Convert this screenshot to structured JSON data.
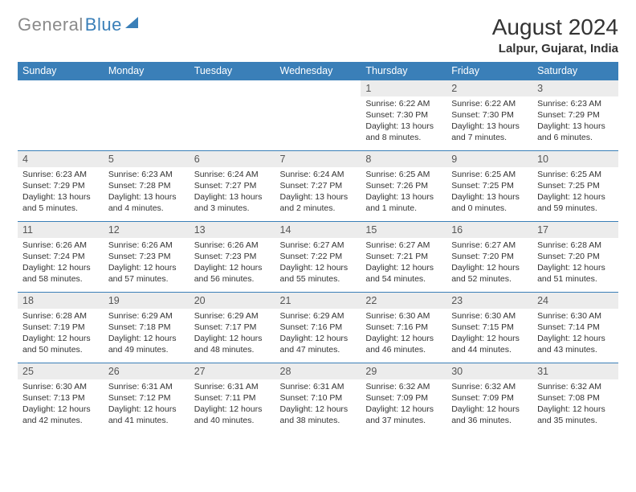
{
  "brand": {
    "part1": "General",
    "part2": "Blue"
  },
  "title": "August 2024",
  "location": "Lalpur, Gujarat, India",
  "colors": {
    "header_bg": "#3a7fb8",
    "header_text": "#ffffff",
    "daynum_bg": "#ececec",
    "border": "#3a7fb8",
    "text": "#333333",
    "logo_gray": "#8a8a8a",
    "logo_blue": "#3a7fb8"
  },
  "weekdays": [
    "Sunday",
    "Monday",
    "Tuesday",
    "Wednesday",
    "Thursday",
    "Friday",
    "Saturday"
  ],
  "weeks": [
    [
      null,
      null,
      null,
      null,
      {
        "n": "1",
        "sr": "Sunrise: 6:22 AM",
        "ss": "Sunset: 7:30 PM",
        "dl": "Daylight: 13 hours and 8 minutes."
      },
      {
        "n": "2",
        "sr": "Sunrise: 6:22 AM",
        "ss": "Sunset: 7:30 PM",
        "dl": "Daylight: 13 hours and 7 minutes."
      },
      {
        "n": "3",
        "sr": "Sunrise: 6:23 AM",
        "ss": "Sunset: 7:29 PM",
        "dl": "Daylight: 13 hours and 6 minutes."
      }
    ],
    [
      {
        "n": "4",
        "sr": "Sunrise: 6:23 AM",
        "ss": "Sunset: 7:29 PM",
        "dl": "Daylight: 13 hours and 5 minutes."
      },
      {
        "n": "5",
        "sr": "Sunrise: 6:23 AM",
        "ss": "Sunset: 7:28 PM",
        "dl": "Daylight: 13 hours and 4 minutes."
      },
      {
        "n": "6",
        "sr": "Sunrise: 6:24 AM",
        "ss": "Sunset: 7:27 PM",
        "dl": "Daylight: 13 hours and 3 minutes."
      },
      {
        "n": "7",
        "sr": "Sunrise: 6:24 AM",
        "ss": "Sunset: 7:27 PM",
        "dl": "Daylight: 13 hours and 2 minutes."
      },
      {
        "n": "8",
        "sr": "Sunrise: 6:25 AM",
        "ss": "Sunset: 7:26 PM",
        "dl": "Daylight: 13 hours and 1 minute."
      },
      {
        "n": "9",
        "sr": "Sunrise: 6:25 AM",
        "ss": "Sunset: 7:25 PM",
        "dl": "Daylight: 13 hours and 0 minutes."
      },
      {
        "n": "10",
        "sr": "Sunrise: 6:25 AM",
        "ss": "Sunset: 7:25 PM",
        "dl": "Daylight: 12 hours and 59 minutes."
      }
    ],
    [
      {
        "n": "11",
        "sr": "Sunrise: 6:26 AM",
        "ss": "Sunset: 7:24 PM",
        "dl": "Daylight: 12 hours and 58 minutes."
      },
      {
        "n": "12",
        "sr": "Sunrise: 6:26 AM",
        "ss": "Sunset: 7:23 PM",
        "dl": "Daylight: 12 hours and 57 minutes."
      },
      {
        "n": "13",
        "sr": "Sunrise: 6:26 AM",
        "ss": "Sunset: 7:23 PM",
        "dl": "Daylight: 12 hours and 56 minutes."
      },
      {
        "n": "14",
        "sr": "Sunrise: 6:27 AM",
        "ss": "Sunset: 7:22 PM",
        "dl": "Daylight: 12 hours and 55 minutes."
      },
      {
        "n": "15",
        "sr": "Sunrise: 6:27 AM",
        "ss": "Sunset: 7:21 PM",
        "dl": "Daylight: 12 hours and 54 minutes."
      },
      {
        "n": "16",
        "sr": "Sunrise: 6:27 AM",
        "ss": "Sunset: 7:20 PM",
        "dl": "Daylight: 12 hours and 52 minutes."
      },
      {
        "n": "17",
        "sr": "Sunrise: 6:28 AM",
        "ss": "Sunset: 7:20 PM",
        "dl": "Daylight: 12 hours and 51 minutes."
      }
    ],
    [
      {
        "n": "18",
        "sr": "Sunrise: 6:28 AM",
        "ss": "Sunset: 7:19 PM",
        "dl": "Daylight: 12 hours and 50 minutes."
      },
      {
        "n": "19",
        "sr": "Sunrise: 6:29 AM",
        "ss": "Sunset: 7:18 PM",
        "dl": "Daylight: 12 hours and 49 minutes."
      },
      {
        "n": "20",
        "sr": "Sunrise: 6:29 AM",
        "ss": "Sunset: 7:17 PM",
        "dl": "Daylight: 12 hours and 48 minutes."
      },
      {
        "n": "21",
        "sr": "Sunrise: 6:29 AM",
        "ss": "Sunset: 7:16 PM",
        "dl": "Daylight: 12 hours and 47 minutes."
      },
      {
        "n": "22",
        "sr": "Sunrise: 6:30 AM",
        "ss": "Sunset: 7:16 PM",
        "dl": "Daylight: 12 hours and 46 minutes."
      },
      {
        "n": "23",
        "sr": "Sunrise: 6:30 AM",
        "ss": "Sunset: 7:15 PM",
        "dl": "Daylight: 12 hours and 44 minutes."
      },
      {
        "n": "24",
        "sr": "Sunrise: 6:30 AM",
        "ss": "Sunset: 7:14 PM",
        "dl": "Daylight: 12 hours and 43 minutes."
      }
    ],
    [
      {
        "n": "25",
        "sr": "Sunrise: 6:30 AM",
        "ss": "Sunset: 7:13 PM",
        "dl": "Daylight: 12 hours and 42 minutes."
      },
      {
        "n": "26",
        "sr": "Sunrise: 6:31 AM",
        "ss": "Sunset: 7:12 PM",
        "dl": "Daylight: 12 hours and 41 minutes."
      },
      {
        "n": "27",
        "sr": "Sunrise: 6:31 AM",
        "ss": "Sunset: 7:11 PM",
        "dl": "Daylight: 12 hours and 40 minutes."
      },
      {
        "n": "28",
        "sr": "Sunrise: 6:31 AM",
        "ss": "Sunset: 7:10 PM",
        "dl": "Daylight: 12 hours and 38 minutes."
      },
      {
        "n": "29",
        "sr": "Sunrise: 6:32 AM",
        "ss": "Sunset: 7:09 PM",
        "dl": "Daylight: 12 hours and 37 minutes."
      },
      {
        "n": "30",
        "sr": "Sunrise: 6:32 AM",
        "ss": "Sunset: 7:09 PM",
        "dl": "Daylight: 12 hours and 36 minutes."
      },
      {
        "n": "31",
        "sr": "Sunrise: 6:32 AM",
        "ss": "Sunset: 7:08 PM",
        "dl": "Daylight: 12 hours and 35 minutes."
      }
    ]
  ]
}
